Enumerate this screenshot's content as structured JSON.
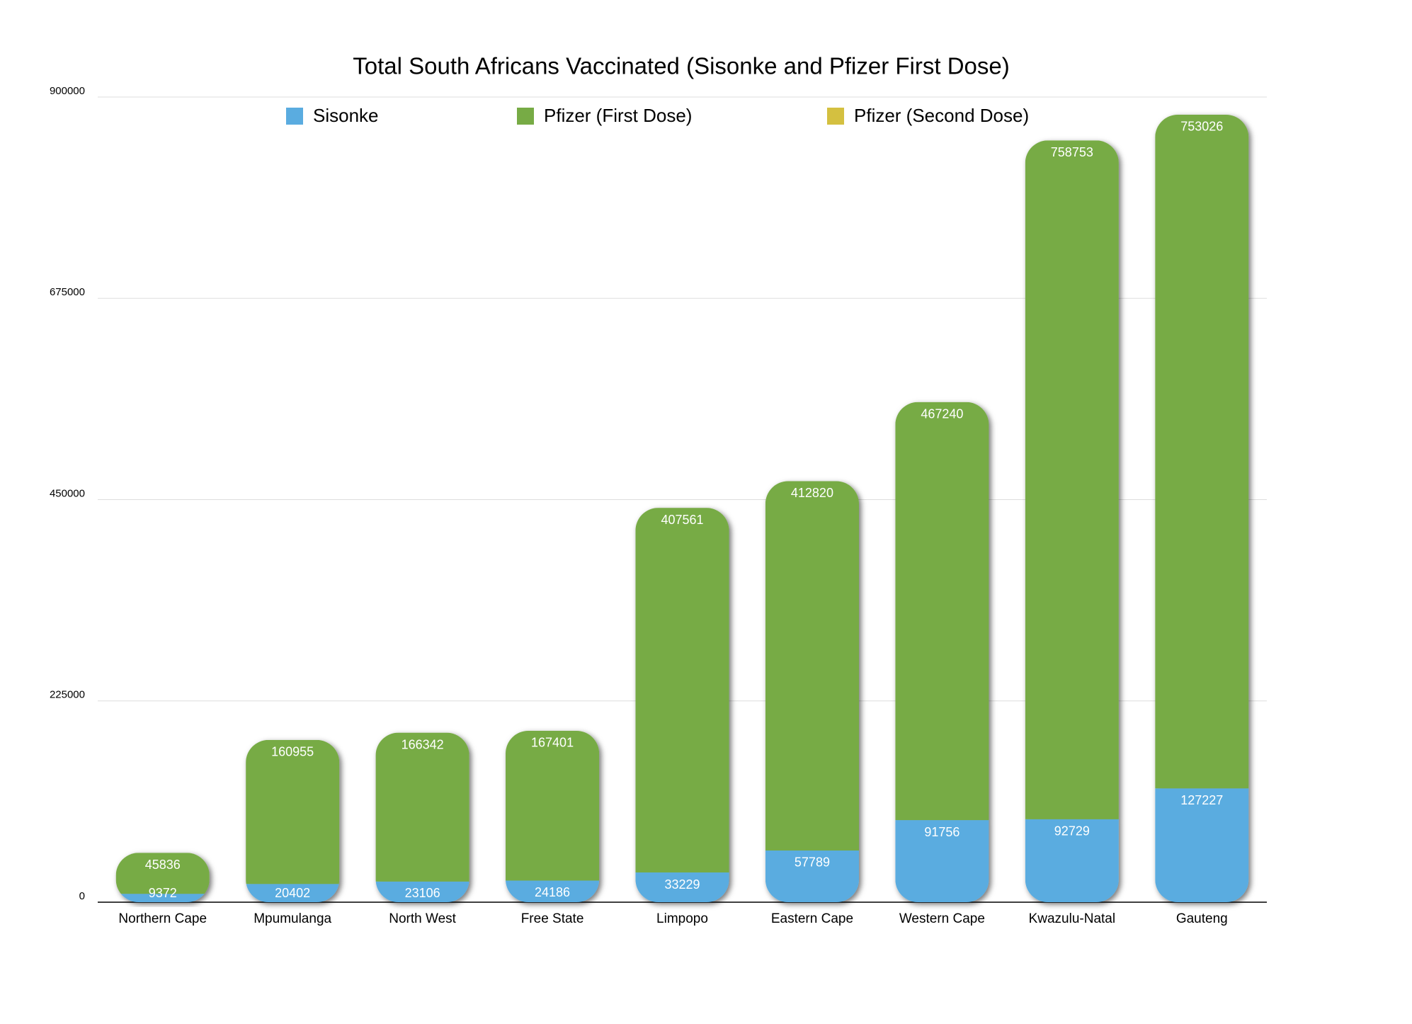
{
  "chart_data": {
    "type": "stacked_bar",
    "title": "Total South Africans Vaccinated (Sisonke and Pfizer First Dose)",
    "categories": [
      "Northern Cape",
      "Mpumulanga",
      "North West",
      "Free State",
      "Limpopo",
      "Eastern Cape",
      "Western Cape",
      "Kwazulu-Natal",
      "Gauteng"
    ],
    "series": [
      {
        "name": "Sisonke",
        "color": "#5aace0",
        "values": [
          9372,
          20402,
          23106,
          24186,
          33229,
          57789,
          91756,
          92729,
          127227
        ]
      },
      {
        "name": "Pfizer (First Dose)",
        "color": "#77ab45",
        "values": [
          45836,
          160955,
          166342,
          167401,
          407561,
          412820,
          467240,
          758753,
          753026
        ]
      },
      {
        "name": "Pfizer (Second Dose)",
        "color": "#d4c040",
        "values": [
          null,
          null,
          null,
          null,
          null,
          null,
          null,
          null,
          null
        ]
      }
    ],
    "ylim": [
      0,
      900000
    ],
    "yticks": [
      0,
      225000,
      450000,
      675000,
      900000
    ],
    "grid": true,
    "legend": "top"
  }
}
